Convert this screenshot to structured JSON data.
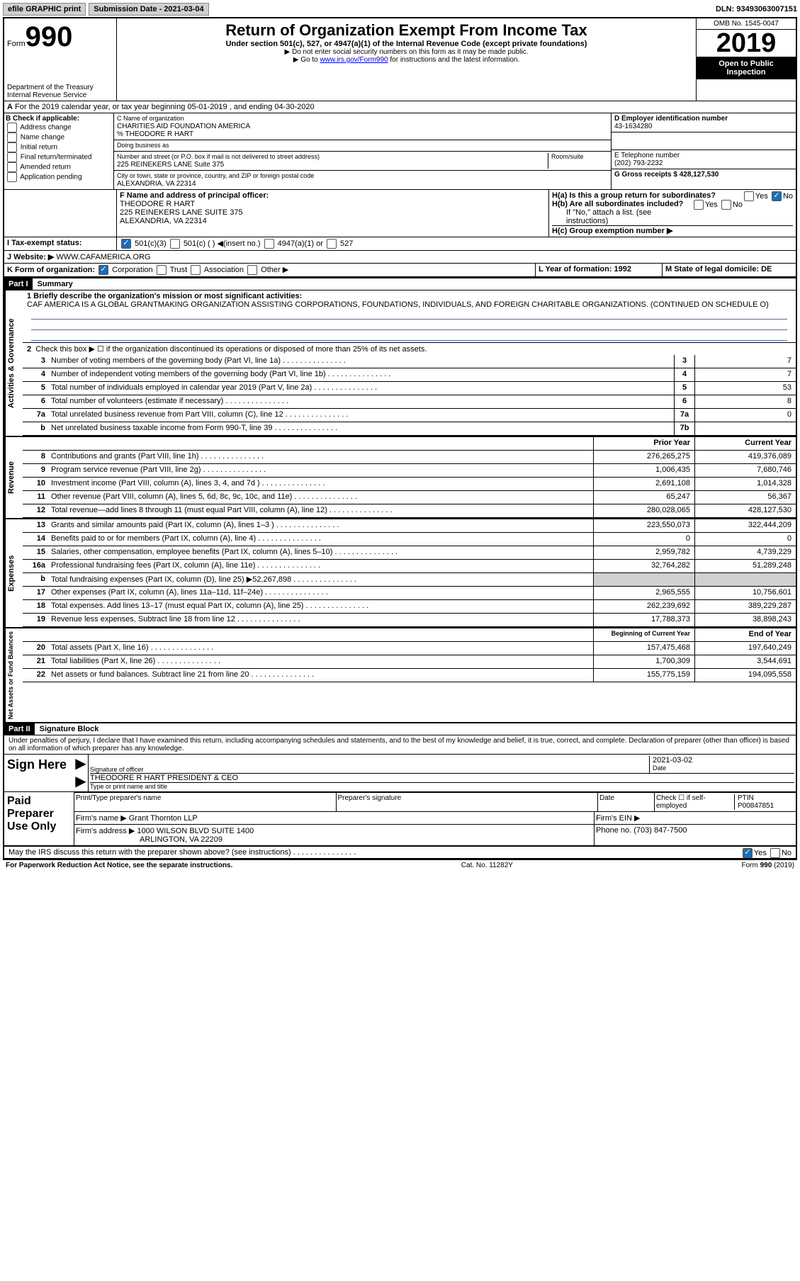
{
  "topbar": {
    "efile": "efile GRAPHIC print",
    "submission": "Submission Date - 2021-03-04",
    "dln": "DLN: 93493063007151"
  },
  "header": {
    "form_prefix": "Form",
    "form_number": "990",
    "dept": "Department of the Treasury\nInternal Revenue Service",
    "title": "Return of Organization Exempt From Income Tax",
    "subtitle": "Under section 501(c), 527, or 4947(a)(1) of the Internal Revenue Code (except private foundations)",
    "line1": "▶ Do not enter social security numbers on this form as it may be made public.",
    "line2_pre": "▶ Go to ",
    "line2_link": "www.irs.gov/Form990",
    "line2_post": " for instructions and the latest information.",
    "omb": "OMB No. 1545-0047",
    "year": "2019",
    "open": "Open to Public Inspection"
  },
  "line_a": "For the 2019 calendar year, or tax year beginning 05-01-2019   , and ending 04-30-2020",
  "section_b": {
    "header": "B Check if applicable:",
    "addr": "Address change",
    "name": "Name change",
    "initial": "Initial return",
    "final": "Final return/terminated",
    "amended": "Amended return",
    "app": "Application pending"
  },
  "section_c": {
    "label": "C Name of organization",
    "org": "CHARITIES AID FOUNDATION AMERICA",
    "care": "% THEODORE R HART",
    "dba_label": "Doing business as",
    "street_label": "Number and street (or P.O. box if mail is not delivered to street address)",
    "room_label": "Room/suite",
    "street": "225 REINEKERS LANE Suite 375",
    "city_label": "City or town, state or province, country, and ZIP or foreign postal code",
    "city": "ALEXANDRIA, VA  22314"
  },
  "section_d": {
    "label": "D Employer identification number",
    "val": "43-1634280"
  },
  "section_e": {
    "label": "E Telephone number",
    "val": "(202) 793-2232"
  },
  "section_g": {
    "label": "G Gross receipts $ 428,127,530"
  },
  "section_f": {
    "label": "F  Name and address of principal officer:",
    "name": "THEODORE R HART",
    "addr1": "225 REINEKERS LANE SUITE 375",
    "addr2": "ALEXANDRIA, VA  22314"
  },
  "section_h": {
    "ha": "H(a)  Is this a group return for subordinates?",
    "hb": "H(b)  Are all subordinates included?",
    "note": "If \"No,\" attach a list. (see instructions)",
    "hc": "H(c)  Group exemption number ▶"
  },
  "section_i": {
    "label": "I  Tax-exempt status:",
    "c3": "501(c)(3)",
    "c": "501(c) (  ) ◀(insert no.)",
    "a1": "4947(a)(1) or",
    "s527": "527"
  },
  "section_j": {
    "label": "J  Website: ▶",
    "val": "WWW.CAFAMERICA.ORG"
  },
  "section_k": {
    "label": "K Form of organization:",
    "corp": "Corporation",
    "trust": "Trust",
    "assoc": "Association",
    "other": "Other ▶"
  },
  "section_l": {
    "label": "L Year of formation: 1992"
  },
  "section_m": {
    "label": "M State of legal domicile: DE"
  },
  "part1": {
    "title": "Part I",
    "subtitle": "Summary",
    "q1": "1  Briefly describe the organization's mission or most significant activities:",
    "q1_text": "CAF AMERICA IS A GLOBAL GRANTMAKING ORGANIZATION ASSISTING CORPORATIONS, FOUNDATIONS, INDIVIDUALS, AND FOREIGN CHARITABLE ORGANIZATIONS. (CONTINUED ON SCHEDULE O)",
    "q2": "Check this box ▶ ☐  if the organization discontinued its operations or disposed of more than 25% of its net assets.",
    "lines": [
      {
        "n": "3",
        "d": "Number of voting members of the governing body (Part VI, line 1a)",
        "b": "3",
        "v": "7"
      },
      {
        "n": "4",
        "d": "Number of independent voting members of the governing body (Part VI, line 1b)",
        "b": "4",
        "v": "7"
      },
      {
        "n": "5",
        "d": "Total number of individuals employed in calendar year 2019 (Part V, line 2a)",
        "b": "5",
        "v": "53"
      },
      {
        "n": "6",
        "d": "Total number of volunteers (estimate if necessary)",
        "b": "6",
        "v": "8"
      },
      {
        "n": "7a",
        "d": "Total unrelated business revenue from Part VIII, column (C), line 12",
        "b": "7a",
        "v": "0"
      },
      {
        "n": "b",
        "d": "Net unrelated business taxable income from Form 990-T, line 39",
        "b": "7b",
        "v": ""
      }
    ],
    "prior_header": "Prior Year",
    "current_header": "Current Year",
    "rev_lines": [
      {
        "n": "8",
        "d": "Contributions and grants (Part VIII, line 1h)",
        "p": "276,265,275",
        "c": "419,376,089"
      },
      {
        "n": "9",
        "d": "Program service revenue (Part VIII, line 2g)",
        "p": "1,006,435",
        "c": "7,680,746"
      },
      {
        "n": "10",
        "d": "Investment income (Part VIII, column (A), lines 3, 4, and 7d )",
        "p": "2,691,108",
        "c": "1,014,328"
      },
      {
        "n": "11",
        "d": "Other revenue (Part VIII, column (A), lines 5, 6d, 8c, 9c, 10c, and 11e)",
        "p": "65,247",
        "c": "56,367"
      },
      {
        "n": "12",
        "d": "Total revenue—add lines 8 through 11 (must equal Part VIII, column (A), line 12)",
        "p": "280,028,065",
        "c": "428,127,530"
      }
    ],
    "exp_lines": [
      {
        "n": "13",
        "d": "Grants and similar amounts paid (Part IX, column (A), lines 1–3 )",
        "p": "223,550,073",
        "c": "322,444,209"
      },
      {
        "n": "14",
        "d": "Benefits paid to or for members (Part IX, column (A), line 4)",
        "p": "0",
        "c": "0"
      },
      {
        "n": "15",
        "d": "Salaries, other compensation, employee benefits (Part IX, column (A), lines 5–10)",
        "p": "2,959,782",
        "c": "4,739,229"
      },
      {
        "n": "16a",
        "d": "Professional fundraising fees (Part IX, column (A), line 11e)",
        "p": "32,764,282",
        "c": "51,289,248"
      },
      {
        "n": "b",
        "d": "Total fundraising expenses (Part IX, column (D), line 25) ▶52,267,898",
        "p": "shaded",
        "c": "shaded"
      },
      {
        "n": "17",
        "d": "Other expenses (Part IX, column (A), lines 11a–11d, 11f–24e)",
        "p": "2,965,555",
        "c": "10,756,601"
      },
      {
        "n": "18",
        "d": "Total expenses. Add lines 13–17 (must equal Part IX, column (A), line 25)",
        "p": "262,239,692",
        "c": "389,229,287"
      },
      {
        "n": "19",
        "d": "Revenue less expenses. Subtract line 18 from line 12",
        "p": "17,788,373",
        "c": "38,898,243"
      }
    ],
    "begin_header": "Beginning of Current Year",
    "end_header": "End of Year",
    "net_lines": [
      {
        "n": "20",
        "d": "Total assets (Part X, line 16)",
        "p": "157,475,468",
        "c": "197,640,249"
      },
      {
        "n": "21",
        "d": "Total liabilities (Part X, line 26)",
        "p": "1,700,309",
        "c": "3,544,691"
      },
      {
        "n": "22",
        "d": "Net assets or fund balances. Subtract line 21 from line 20",
        "p": "155,775,159",
        "c": "194,095,558"
      }
    ],
    "vert_activities": "Activities & Governance",
    "vert_revenue": "Revenue",
    "vert_expenses": "Expenses",
    "vert_net": "Net Assets or Fund Balances"
  },
  "part2": {
    "title": "Part II",
    "subtitle": "Signature Block",
    "decl": "Under penalties of perjury, I declare that I have examined this return, including accompanying schedules and statements, and to the best of my knowledge and belief, it is true, correct, and complete. Declaration of preparer (other than officer) is based on all information of which preparer has any knowledge.",
    "sign_here": "Sign Here",
    "sig_officer": "Signature of officer",
    "date_label": "Date",
    "date_val": "2021-03-02",
    "name_title": "THEODORE R HART PRESIDENT & CEO",
    "type_label": "Type or print name and title",
    "paid_prep": "Paid Preparer Use Only",
    "prep_name_label": "Print/Type preparer's name",
    "prep_sig_label": "Preparer's signature",
    "check_label": "Check ☐ if self-employed",
    "ptin_label": "PTIN",
    "ptin_val": "P00847851",
    "firm_name_label": "Firm's name    ▶",
    "firm_name": "Grant Thornton LLP",
    "firm_ein_label": "Firm's EIN ▶",
    "firm_addr_label": "Firm's address ▶",
    "firm_addr1": "1000 WILSON BLVD SUITE 1400",
    "firm_addr2": "ARLINGTON, VA  22209",
    "phone_label": "Phone no. (703) 847-7500",
    "irs_discuss": "May the IRS discuss this return with the preparer shown above? (see instructions)",
    "yes": "Yes",
    "no": "No"
  },
  "footer": {
    "paperwork": "For Paperwork Reduction Act Notice, see the separate instructions.",
    "cat": "Cat. No. 11282Y",
    "form": "Form 990 (2019)"
  }
}
